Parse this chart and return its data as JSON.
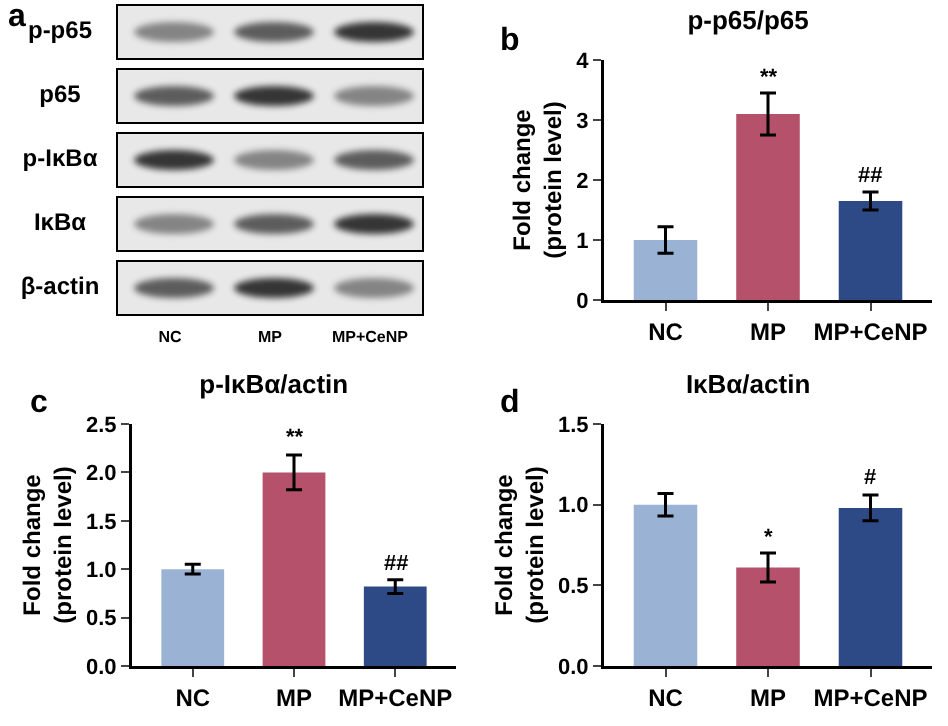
{
  "chart_data": [
    {
      "type": "other",
      "annotations": [
        "a"
      ],
      "y_categories": [
        "p-p65",
        "p65",
        "p-IκBα",
        "IκBα",
        "β-actin"
      ],
      "categories": [
        "NC",
        "MP",
        "MP+CeNP"
      ]
    },
    {
      "type": "bar",
      "title": "p-p65/p65",
      "ylabel": "Fold change\n(protein level)",
      "categories": [
        "NC",
        "MP",
        "MP+CeNP"
      ],
      "values": [
        1.0,
        3.1,
        1.65
      ],
      "errors": [
        0.22,
        0.35,
        0.15
      ],
      "colors": [
        "#9ab3d5",
        "#b5516b",
        "#2e4a86"
      ],
      "ylim": [
        0,
        4
      ],
      "yticks": [
        0,
        1,
        2,
        3,
        4
      ],
      "grid": false,
      "annotations": [
        "b",
        {
          "text": "**",
          "x": "MP",
          "y": 3.45
        },
        {
          "text": "##",
          "x": "MP+CeNP",
          "y": 1.8
        }
      ]
    },
    {
      "type": "bar",
      "title": "p-IκBα/actin",
      "ylabel": "Fold change\n(protein level)",
      "categories": [
        "NC",
        "MP",
        "MP+CeNP"
      ],
      "values": [
        1.0,
        2.0,
        0.82
      ],
      "errors": [
        0.05,
        0.18,
        0.07
      ],
      "colors": [
        "#9ab3d5",
        "#b5516b",
        "#2e4a86"
      ],
      "ylim": [
        0,
        2.5
      ],
      "yticks": [
        {
          "value": 0,
          "label": "0.0"
        },
        {
          "value": 0.5,
          "label": "0.5"
        },
        {
          "value": 1,
          "label": "1.0"
        },
        {
          "value": 1.5,
          "label": "1.5"
        },
        {
          "value": 2,
          "label": "2.0"
        },
        {
          "value": 2.5,
          "label": "2.5"
        }
      ],
      "grid": false,
      "annotations": [
        "c",
        {
          "text": "**",
          "x": "MP",
          "y": 2.18
        },
        {
          "text": "##",
          "x": "MP+CeNP",
          "y": 0.89
        }
      ]
    },
    {
      "type": "bar",
      "title": "IκBα/actin",
      "ylabel": "Fold change\n(protein level)",
      "categories": [
        "NC",
        "MP",
        "MP+CeNP"
      ],
      "values": [
        1.0,
        0.61,
        0.98
      ],
      "errors": [
        0.07,
        0.09,
        0.08
      ],
      "colors": [
        "#9ab3d5",
        "#b5516b",
        "#2e4a86"
      ],
      "ylim": [
        0,
        1.5
      ],
      "yticks": [
        {
          "value": 0,
          "label": "0.0"
        },
        {
          "value": 0.5,
          "label": "0.5"
        },
        {
          "value": 1,
          "label": "1.0"
        },
        {
          "value": 1.5,
          "label": "1.5"
        }
      ],
      "grid": false,
      "annotations": [
        "d",
        {
          "text": "*",
          "x": "MP",
          "y": 0.7
        },
        {
          "text": "#",
          "x": "MP+CeNP",
          "y": 1.06
        }
      ]
    }
  ]
}
